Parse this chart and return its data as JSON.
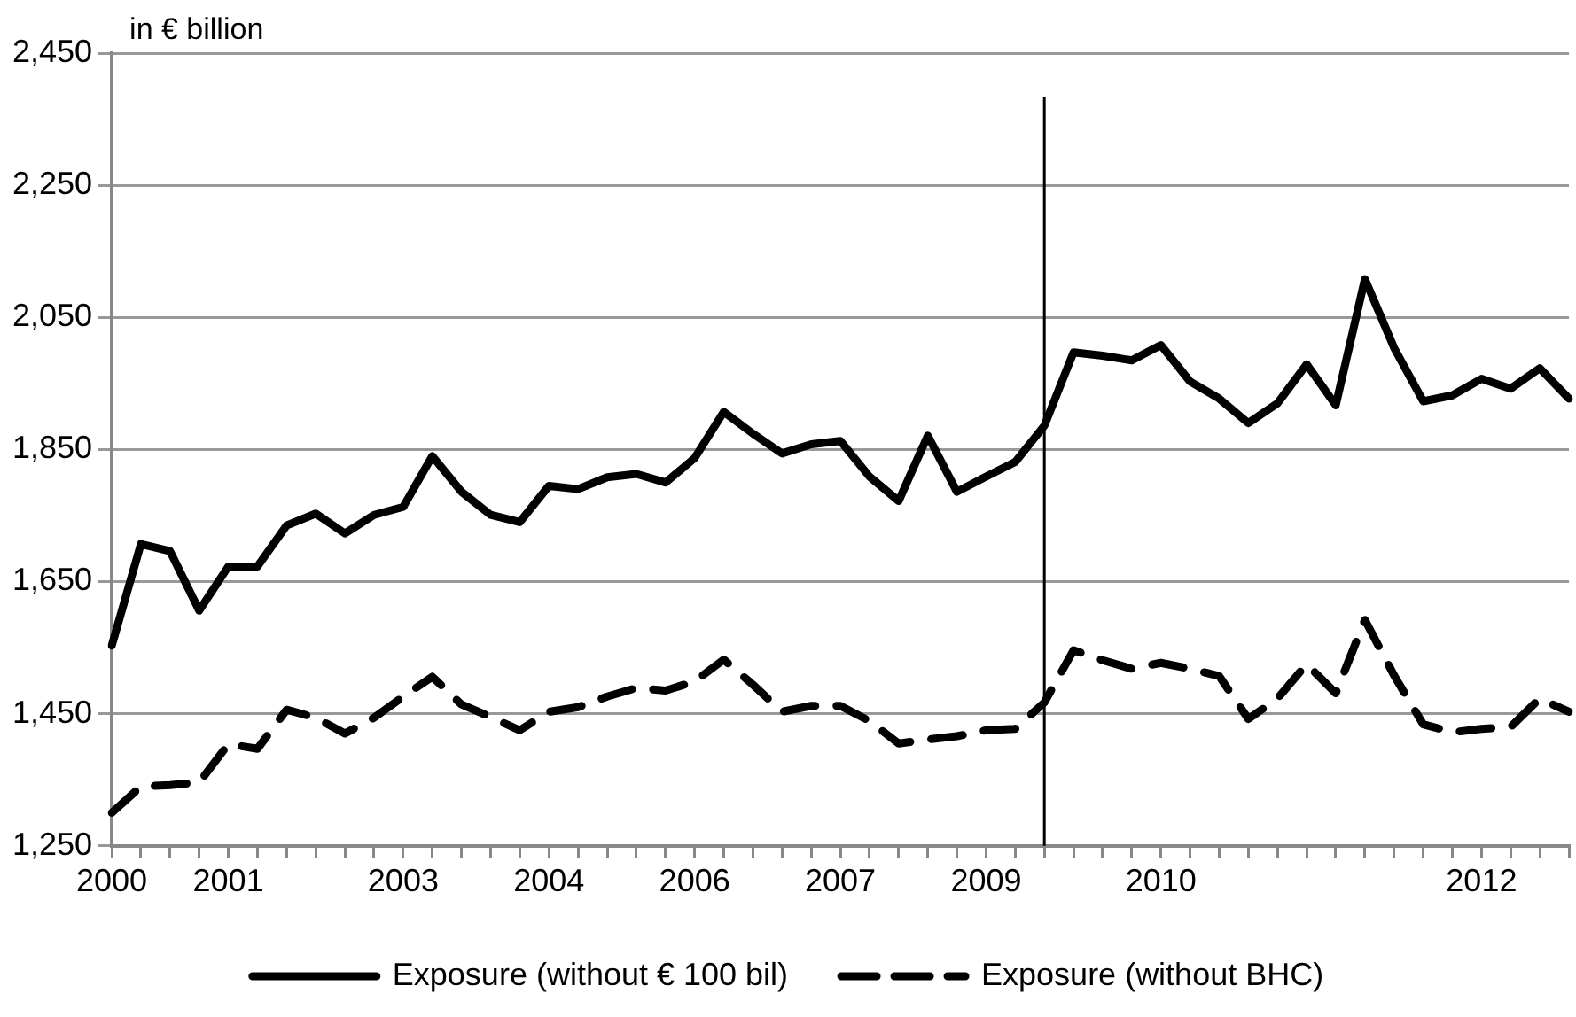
{
  "chart_data": {
    "type": "line",
    "ylabel": "in € billion",
    "categories": [
      "2000",
      null,
      null,
      null,
      "2001",
      null,
      null,
      null,
      null,
      null,
      "2003",
      null,
      null,
      null,
      null,
      "2004",
      null,
      null,
      null,
      null,
      "2006",
      null,
      null,
      null,
      null,
      "2007",
      null,
      null,
      null,
      null,
      "2009",
      null,
      null,
      null,
      null,
      null,
      "2010",
      null,
      null,
      null,
      null,
      null,
      null,
      null,
      null,
      null,
      null,
      "2012",
      null,
      null,
      null
    ],
    "ylim": [
      1250,
      2450
    ],
    "yticks": [
      {
        "value": 1250,
        "label": "1,250"
      },
      {
        "value": 1450,
        "label": "1,450"
      },
      {
        "value": 1650,
        "label": "1,650"
      },
      {
        "value": 1850,
        "label": "1,850"
      },
      {
        "value": 2050,
        "label": "2,050"
      },
      {
        "value": 2250,
        "label": "2,250"
      },
      {
        "value": 2450,
        "label": "2,450"
      }
    ],
    "grid": "y",
    "legend": "bottom",
    "marker": "none",
    "series": [
      {
        "name": "Exposure (without € 100 bil)",
        "color": "#000000",
        "line_style": "solid",
        "values": [
          1553,
          1707,
          1696,
          1606,
          1673,
          1673,
          1735,
          1753,
          1723,
          1751,
          1763,
          1840,
          1786,
          1751,
          1740,
          1795,
          1790,
          1808,
          1813,
          1800,
          1837,
          1907,
          1874,
          1844,
          1858,
          1863,
          1809,
          1772,
          1871,
          1786,
          1809,
          1831,
          1886,
          1997,
          1992,
          1985,
          2008,
          1953,
          1927,
          1890,
          1920,
          1979,
          1917,
          2108,
          2004,
          1923,
          1932,
          1957,
          1942,
          1973,
          1927
        ]
      },
      {
        "name": "Exposure (without BHC)",
        "color": "#000000",
        "line_style": "dashed",
        "values": [
          1300,
          1340,
          1342,
          1346,
          1404,
          1397,
          1456,
          1444,
          1420,
          1444,
          1476,
          1506,
          1464,
          1445,
          1425,
          1453,
          1460,
          1476,
          1489,
          1485,
          1499,
          1532,
          1494,
          1453,
          1462,
          1462,
          1439,
          1405,
          1411,
          1416,
          1425,
          1427,
          1467,
          1546,
          1531,
          1518,
          1527,
          1518,
          1507,
          1442,
          1473,
          1525,
          1481,
          1592,
          1508,
          1434,
          1422,
          1427,
          1430,
          1473,
          1453
        ]
      }
    ]
  }
}
